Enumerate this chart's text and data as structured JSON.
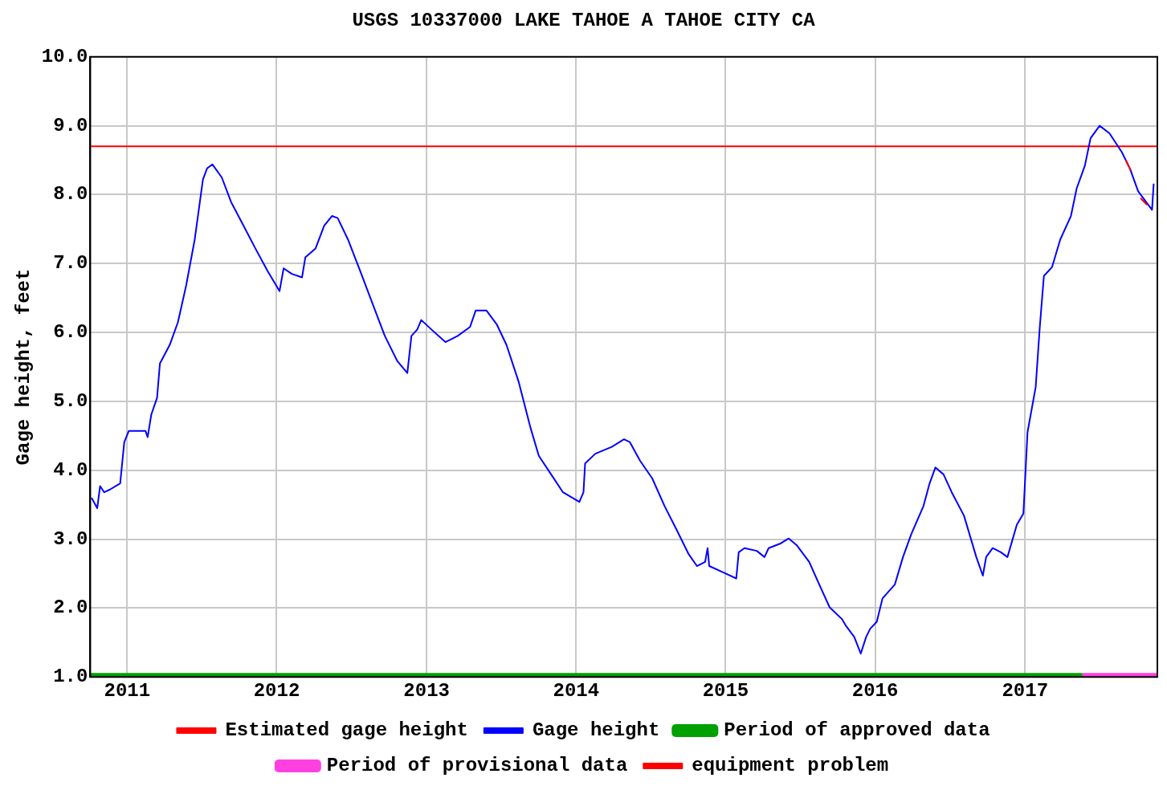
{
  "chart_data": {
    "type": "line",
    "title": "USGS 10337000 LAKE TAHOE A TAHOE CITY CA",
    "ylabel": "Gage height, feet",
    "xlim": [
      "2010-10-03",
      "2017-11-20"
    ],
    "xticks": [
      {
        "value": "2011",
        "label": "2011"
      },
      {
        "value": "2012",
        "label": "2012"
      },
      {
        "value": "2013",
        "label": "2013"
      },
      {
        "value": "2014",
        "label": "2014"
      },
      {
        "value": "2015",
        "label": "2015"
      },
      {
        "value": "2016",
        "label": "2016"
      },
      {
        "value": "2017",
        "label": "2017"
      }
    ],
    "ylim": [
      1,
      10
    ],
    "yticks": [
      {
        "value": 1,
        "label": "1.0"
      },
      {
        "value": 2,
        "label": "2.0"
      },
      {
        "value": 3,
        "label": "3.0"
      },
      {
        "value": 4,
        "label": "4.0"
      },
      {
        "value": 5,
        "label": "5.0"
      },
      {
        "value": 6,
        "label": "6.0"
      },
      {
        "value": 7,
        "label": "7.0"
      },
      {
        "value": 8,
        "label": "8.0"
      },
      {
        "value": 9,
        "label": "9.0"
      },
      {
        "value": 10,
        "label": "10.0"
      }
    ],
    "grid": true,
    "legend": "bottom",
    "marker": "none",
    "line_style": "solid",
    "series": [
      {
        "name": "Gage height",
        "color": "#0000ff",
        "x": [
          "2010-10-06",
          "2010-10-20",
          "2010-10-27",
          "2010-11-06",
          "2010-11-20",
          "2010-12-15",
          "2010-12-25",
          "2011-01-05",
          "2011-02-15",
          "2011-02-20",
          "2011-03-01",
          "2011-03-15",
          "2011-03-22",
          "2011-04-15",
          "2011-05-05",
          "2011-05-25",
          "2011-06-15",
          "2011-07-05",
          "2011-07-15",
          "2011-07-28",
          "2011-08-20",
          "2011-09-12",
          "2011-10-12",
          "2011-11-10",
          "2011-12-10",
          "2012-01-08",
          "2012-01-18",
          "2012-02-07",
          "2012-03-03",
          "2012-03-11",
          "2012-04-05",
          "2012-04-26",
          "2012-05-15",
          "2012-05-29",
          "2012-06-23",
          "2012-07-23",
          "2012-08-22",
          "2012-09-21",
          "2012-10-21",
          "2012-11-15",
          "2012-11-25",
          "2012-12-09",
          "2012-12-19",
          "2013-01-17",
          "2013-02-16",
          "2013-03-18",
          "2013-04-17",
          "2013-05-01",
          "2013-05-27",
          "2013-06-21",
          "2013-07-15",
          "2013-08-14",
          "2013-09-12",
          "2013-10-02",
          "2013-11-01",
          "2013-11-30",
          "2014-01-09",
          "2014-01-19",
          "2014-01-23",
          "2014-02-17",
          "2014-03-29",
          "2014-04-28",
          "2014-05-12",
          "2014-06-06",
          "2014-07-06",
          "2014-08-05",
          "2014-09-03",
          "2014-10-03",
          "2014-10-23",
          "2014-11-12",
          "2014-11-18",
          "2014-11-22",
          "2014-12-29",
          "2015-01-27",
          "2015-02-02",
          "2015-02-16",
          "2015-03-18",
          "2015-04-06",
          "2015-04-16",
          "2015-05-16",
          "2015-06-04",
          "2015-06-24",
          "2015-07-24",
          "2015-08-23",
          "2015-09-12",
          "2015-10-12",
          "2015-10-22",
          "2015-11-11",
          "2015-11-27",
          "2015-12-10",
          "2015-12-20",
          "2016-01-05",
          "2016-01-19",
          "2016-02-18",
          "2016-03-09",
          "2016-03-29",
          "2016-04-28",
          "2016-05-13",
          "2016-05-27",
          "2016-06-16",
          "2016-07-06",
          "2016-08-05",
          "2016-09-04",
          "2016-09-20",
          "2016-09-28",
          "2016-10-14",
          "2016-11-03",
          "2016-11-19",
          "2016-12-12",
          "2016-12-28",
          "2017-01-07",
          "2017-01-27",
          "2017-02-06",
          "2017-02-16",
          "2017-03-08",
          "2017-03-28",
          "2017-04-23",
          "2017-05-07",
          "2017-05-27",
          "2017-06-10",
          "2017-07-02",
          "2017-07-26",
          "2017-08-25",
          "2017-09-14",
          "2017-10-04",
          "2017-10-24",
          "2017-11-07",
          "2017-11-11"
        ],
        "values": [
          3.6,
          3.45,
          3.77,
          3.68,
          3.72,
          3.81,
          4.41,
          4.57,
          4.57,
          4.48,
          4.81,
          5.05,
          5.55,
          5.82,
          6.15,
          6.68,
          7.35,
          8.22,
          8.38,
          8.44,
          8.25,
          7.89,
          7.55,
          7.22,
          6.89,
          6.6,
          6.93,
          6.85,
          6.8,
          7.09,
          7.22,
          7.55,
          7.69,
          7.66,
          7.35,
          6.89,
          6.42,
          5.95,
          5.59,
          5.41,
          5.95,
          6.04,
          6.18,
          6.02,
          5.86,
          5.95,
          6.08,
          6.32,
          6.32,
          6.12,
          5.82,
          5.28,
          4.61,
          4.21,
          3.94,
          3.68,
          3.54,
          3.68,
          4.1,
          4.24,
          4.34,
          4.45,
          4.41,
          4.14,
          3.88,
          3.48,
          3.14,
          2.78,
          2.61,
          2.67,
          2.87,
          2.61,
          2.51,
          2.43,
          2.81,
          2.87,
          2.83,
          2.74,
          2.87,
          2.94,
          3.01,
          2.91,
          2.67,
          2.27,
          2.01,
          1.84,
          1.74,
          1.58,
          1.34,
          1.58,
          1.7,
          1.8,
          2.14,
          2.34,
          2.74,
          3.07,
          3.48,
          3.81,
          4.04,
          3.94,
          3.68,
          3.34,
          2.74,
          2.47,
          2.74,
          2.87,
          2.81,
          2.74,
          3.21,
          3.37,
          4.55,
          5.21,
          6.08,
          6.82,
          6.95,
          7.35,
          7.69,
          8.09,
          8.42,
          8.82,
          9.0,
          8.89,
          8.62,
          8.38,
          8.05,
          7.89,
          7.78,
          8.16
        ]
      },
      {
        "name": "Estimated gage height",
        "color": "#ff0000",
        "x": [
          "2017-09-04",
          "2017-09-16",
          null,
          "2017-10-10",
          "2017-10-26"
        ],
        "values": [
          8.5,
          8.35,
          null,
          7.95,
          7.85
        ]
      },
      {
        "name": "Period of approved data",
        "color": "#00a000",
        "x": [
          "2010-10-03",
          "2017-05-21"
        ],
        "values": [
          1,
          1
        ]
      },
      {
        "name": "Period of provisional data",
        "color": "#ff40e0",
        "x": [
          "2017-05-21",
          "2017-11-20"
        ],
        "values": [
          1,
          1
        ]
      },
      {
        "name": "equipment problem",
        "color": "#ff0000",
        "x": [
          "2010-10-03",
          "2017-11-20"
        ],
        "values": [
          8.7,
          8.7
        ]
      }
    ]
  }
}
